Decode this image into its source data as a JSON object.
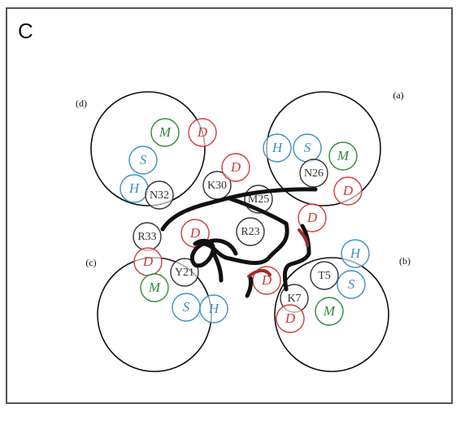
{
  "panel_label": "C",
  "domains": [
    {
      "label": "(a)"
    },
    {
      "label": "(b)"
    },
    {
      "label": "(c)"
    },
    {
      "label": "(d)"
    }
  ],
  "residues": [
    {
      "label": "M",
      "color": "#2e8b3a"
    },
    {
      "label": "D",
      "color": "#d23a3a"
    },
    {
      "label": "S",
      "color": "#3a8fc8"
    },
    {
      "label": "H",
      "color": "#3a8fc8"
    },
    {
      "label": "N32",
      "color": "#333333"
    },
    {
      "label": "K30",
      "color": "#333333"
    },
    {
      "label": "D",
      "color": "#d23a3a"
    },
    {
      "label": "H",
      "color": "#3a8fc8"
    },
    {
      "label": "S",
      "color": "#3a8fc8"
    },
    {
      "label": "M",
      "color": "#2e8b3a"
    },
    {
      "label": "N26",
      "color": "#333333"
    },
    {
      "label": "D",
      "color": "#d23a3a"
    },
    {
      "label": "M25",
      "color": "#333333"
    },
    {
      "label": "D",
      "color": "#d23a3a"
    },
    {
      "label": "R23",
      "color": "#333333"
    },
    {
      "label": "D",
      "color": "#d23a3a"
    },
    {
      "label": "R33",
      "color": "#333333"
    },
    {
      "label": "D",
      "color": "#d23a3a"
    },
    {
      "label": "Y21",
      "color": "#333333"
    },
    {
      "label": "M",
      "color": "#2e8b3a"
    },
    {
      "label": "S",
      "color": "#3a8fc8"
    },
    {
      "label": "H",
      "color": "#3a8fc8"
    },
    {
      "label": "H",
      "color": "#3a8fc8"
    },
    {
      "label": "T5",
      "color": "#333333"
    },
    {
      "label": "S",
      "color": "#3a8fc8"
    },
    {
      "label": "D",
      "color": "#d23a3a"
    },
    {
      "label": "K7",
      "color": "#333333"
    },
    {
      "label": "M",
      "color": "#2e8b3a"
    },
    {
      "label": "D",
      "color": "#d23a3a"
    }
  ]
}
